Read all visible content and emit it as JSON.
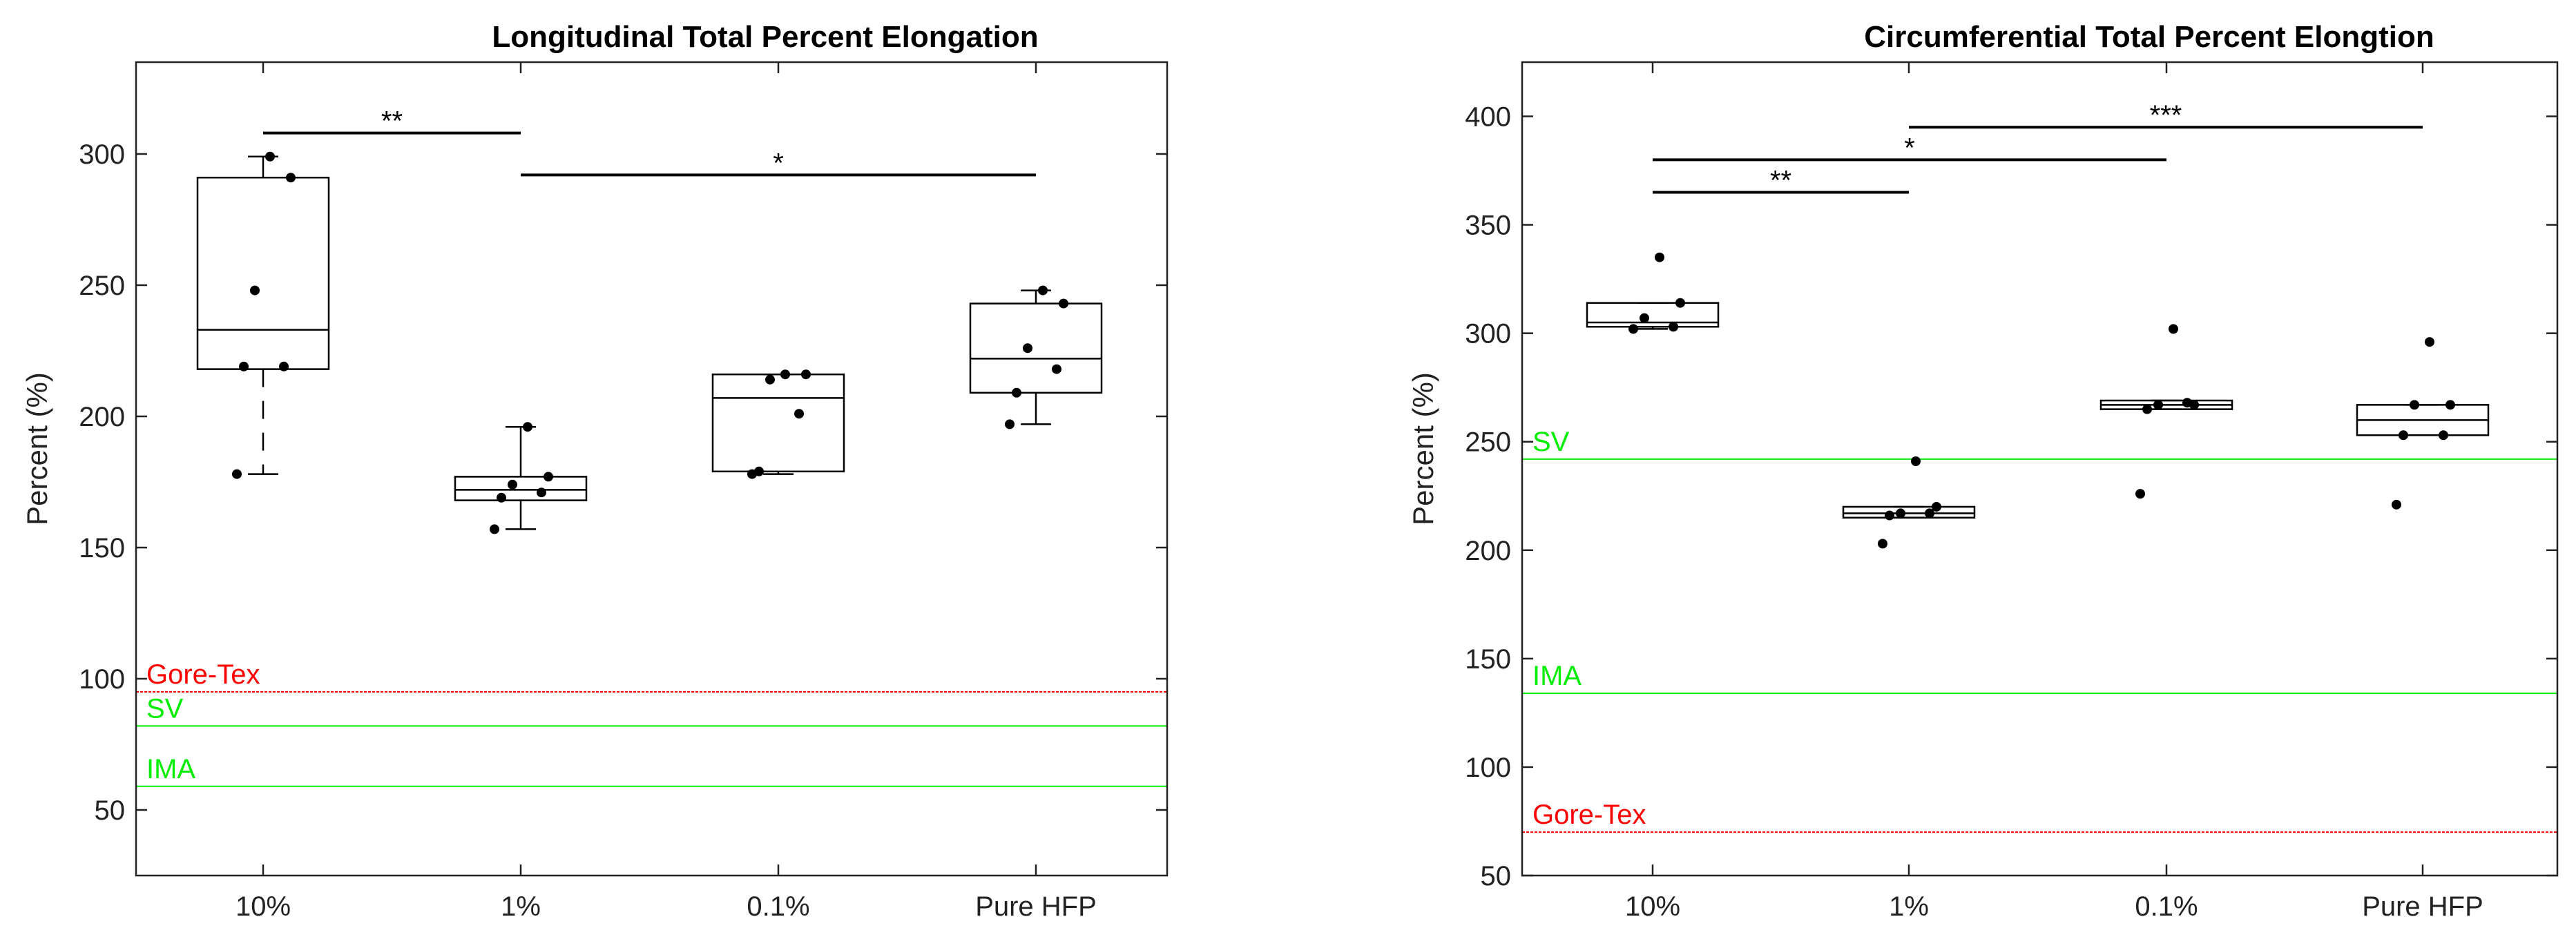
{
  "chart_data": [
    {
      "type": "box",
      "title": "Longitudinal Total Percent Elongation",
      "xlabel": "",
      "ylabel": "Percent (%)",
      "ylim": [
        25,
        335
      ],
      "yticks": [
        50,
        100,
        150,
        200,
        250,
        300
      ],
      "categories": [
        "10%",
        "1%",
        "0.1%",
        "Pure HFP"
      ],
      "boxes": [
        {
          "whisker_low": 178,
          "q1": 218,
          "median": 233,
          "q3": 291,
          "whisker_high": 299,
          "points": [
            299,
            291,
            248,
            219,
            219,
            178
          ],
          "dashed_lower": true
        },
        {
          "whisker_low": 157,
          "q1": 168,
          "median": 172,
          "q3": 177,
          "whisker_high": 196,
          "points": [
            196,
            177,
            174,
            171,
            169,
            157
          ],
          "dashed_lower": false
        },
        {
          "whisker_low": 178,
          "q1": 179,
          "median": 207,
          "q3": 216,
          "whisker_high": 216,
          "points": [
            216,
            216,
            214,
            201,
            179,
            178
          ],
          "dashed_lower": false
        },
        {
          "whisker_low": 197,
          "q1": 209,
          "median": 222,
          "q3": 243,
          "whisker_high": 248,
          "points": [
            248,
            243,
            226,
            218,
            209,
            197
          ],
          "dashed_lower": false
        }
      ],
      "reference_lines": [
        {
          "label": "Gore-Tex",
          "value": 95,
          "color": "#ff0000"
        },
        {
          "label": "SV",
          "value": 82,
          "color": "#00ee00"
        },
        {
          "label": "IMA",
          "value": 59,
          "color": "#00ee00"
        }
      ],
      "significance": [
        {
          "from": 0,
          "to": 1,
          "y": 308,
          "label": "**"
        },
        {
          "from": 1,
          "to": 3,
          "y": 292,
          "label": "*"
        }
      ]
    },
    {
      "type": "box",
      "title": "Circumferential Total Percent Elongtion",
      "xlabel": "",
      "ylabel": "Percent (%)",
      "ylim": [
        50,
        425
      ],
      "yticks": [
        50,
        100,
        150,
        200,
        250,
        300,
        350,
        400
      ],
      "categories": [
        "10%",
        "1%",
        "0.1%",
        "Pure HFP"
      ],
      "boxes": [
        {
          "whisker_low": 302,
          "q1": 303,
          "median": 305,
          "q3": 314,
          "whisker_high": 314,
          "points": [
            335,
            314,
            307,
            303,
            302
          ],
          "dashed_lower": false
        },
        {
          "whisker_low": 215,
          "q1": 215,
          "median": 217,
          "q3": 220,
          "whisker_high": 220,
          "points": [
            241,
            220,
            217,
            217,
            216,
            203
          ],
          "dashed_lower": false
        },
        {
          "whisker_low": 265,
          "q1": 265,
          "median": 267,
          "q3": 269,
          "whisker_high": 269,
          "points": [
            302,
            267,
            267,
            268,
            265,
            226
          ],
          "dashed_lower": false
        },
        {
          "whisker_low": 253,
          "q1": 253,
          "median": 260,
          "q3": 267,
          "whisker_high": 267,
          "points": [
            296,
            267,
            267,
            253,
            253,
            221
          ],
          "dashed_lower": false
        }
      ],
      "reference_lines": [
        {
          "label": "SV",
          "value": 242,
          "color": "#00ee00"
        },
        {
          "label": "IMA",
          "value": 134,
          "color": "#00ee00"
        },
        {
          "label": "Gore-Tex",
          "value": 70,
          "color": "#ff0000"
        }
      ],
      "significance": [
        {
          "from": 1,
          "to": 3,
          "y": 395,
          "label": "***"
        },
        {
          "from": 0,
          "to": 2,
          "y": 380,
          "label": "*"
        },
        {
          "from": 0,
          "to": 1,
          "y": 365,
          "label": "**"
        }
      ]
    }
  ]
}
